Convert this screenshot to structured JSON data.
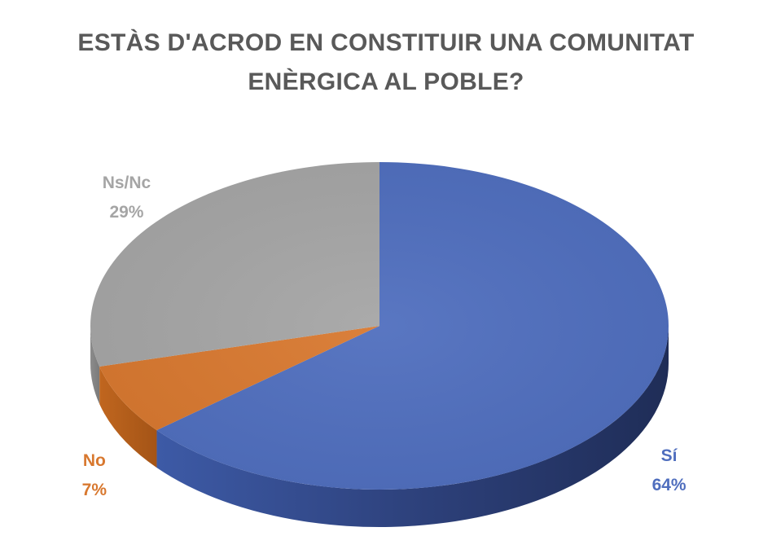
{
  "chart_data": {
    "type": "pie",
    "title_lines": [
      "ESTÀS D'ACROD EN CONSTITUIR UNA COMUNITAT",
      "ENÈRGICA AL POBLE?"
    ],
    "slices": [
      {
        "name": "Sí",
        "value": 64,
        "label": "64%",
        "color": "#4F6EBE"
      },
      {
        "name": "No",
        "value": 7,
        "label": "7%",
        "color": "#D8782F"
      },
      {
        "name": "Ns/Nc",
        "value": 29,
        "label": "29%",
        "color": "#A5A5A5"
      }
    ],
    "legend": "none",
    "style": "3d"
  }
}
